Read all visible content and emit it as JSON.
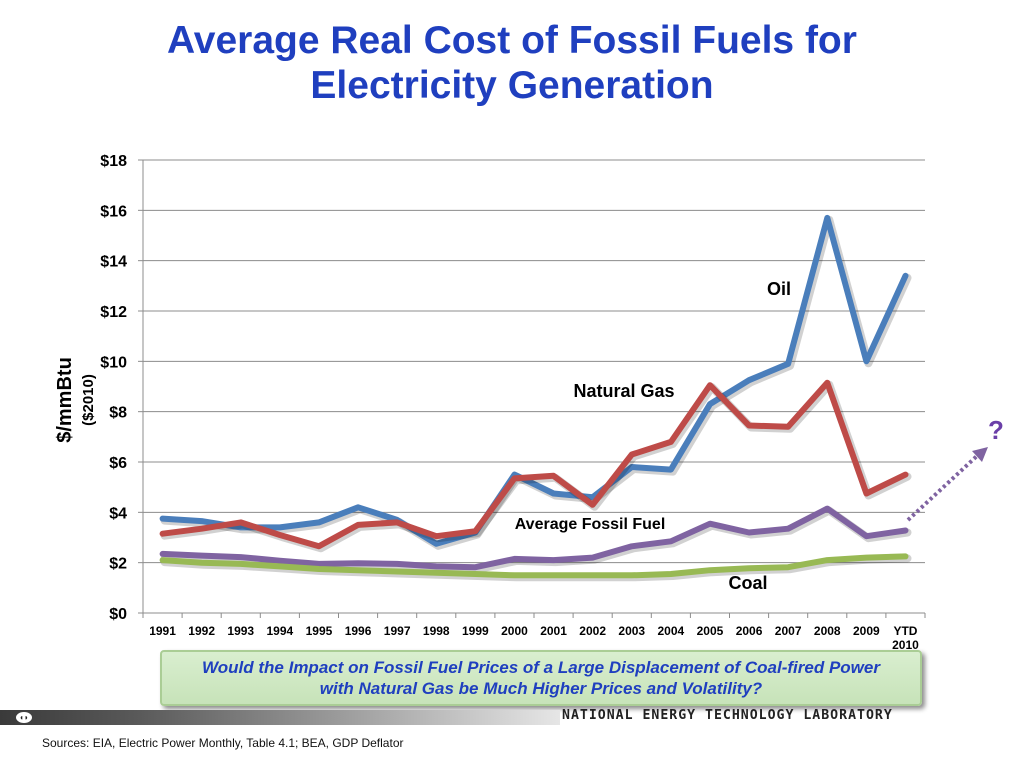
{
  "title_line1": "Average Real Cost of Fossil Fuels for",
  "title_line2": "Electricity Generation",
  "chart_data": {
    "type": "line",
    "ylabel": "$/mmBtu",
    "ylabel_sub": "($2010)",
    "ylim": [
      0,
      18
    ],
    "yticks": [
      0,
      2,
      4,
      6,
      8,
      10,
      12,
      14,
      16,
      18
    ],
    "ytick_labels": [
      "$0",
      "$2",
      "$4",
      "$6",
      "$8",
      "$10",
      "$12",
      "$14",
      "$16",
      "$18"
    ],
    "categories": [
      "1991",
      "1992",
      "1993",
      "1994",
      "1995",
      "1996",
      "1997",
      "1998",
      "1999",
      "2000",
      "2001",
      "2002",
      "2003",
      "2004",
      "2005",
      "2006",
      "2007",
      "2008",
      "2009",
      "YTD 2010"
    ],
    "grid": "horizontal",
    "series": [
      {
        "name": "Oil",
        "color": "#4a7ebb",
        "values": [
          3.75,
          3.65,
          3.4,
          3.4,
          3.6,
          4.2,
          3.7,
          2.75,
          3.2,
          5.5,
          4.75,
          4.6,
          5.8,
          5.7,
          8.3,
          9.25,
          9.9,
          15.7,
          10.0,
          13.4
        ]
      },
      {
        "name": "Natural Gas",
        "color": "#be4b48",
        "values": [
          3.15,
          3.35,
          3.6,
          3.1,
          2.65,
          3.5,
          3.6,
          3.05,
          3.25,
          5.35,
          5.45,
          4.3,
          6.3,
          6.8,
          9.05,
          7.45,
          7.4,
          9.15,
          4.75,
          5.5
        ]
      },
      {
        "name": "Average Fossil Fuel",
        "color": "#7f63a1",
        "values": [
          2.35,
          2.28,
          2.22,
          2.08,
          1.95,
          1.98,
          1.95,
          1.85,
          1.82,
          2.15,
          2.1,
          2.2,
          2.65,
          2.85,
          3.55,
          3.2,
          3.35,
          4.15,
          3.05,
          3.28
        ]
      },
      {
        "name": "Coal",
        "color": "#98b954",
        "values": [
          2.1,
          2.0,
          1.95,
          1.85,
          1.75,
          1.7,
          1.65,
          1.6,
          1.55,
          1.5,
          1.5,
          1.5,
          1.5,
          1.55,
          1.7,
          1.78,
          1.82,
          2.1,
          2.2,
          2.25
        ]
      }
    ],
    "annotations": [
      "Oil",
      "Natural Gas",
      "Average Fossil Fuel",
      "Coal"
    ]
  },
  "arrow_color": "#7f63a1",
  "question_mark": "?",
  "callout_text": "Would the Impact on Fossil Fuel Prices of a Large Displacement of Coal-fired Power with Natural Gas be Much Higher Prices and Volatility?",
  "footer_org": "NATIONAL ENERGY TECHNOLOGY LABORATORY",
  "sources": "Sources: EIA, Electric Power Monthly, Table 4.1; BEA, GDP Deflator",
  "title_color": "#1f3fbf"
}
